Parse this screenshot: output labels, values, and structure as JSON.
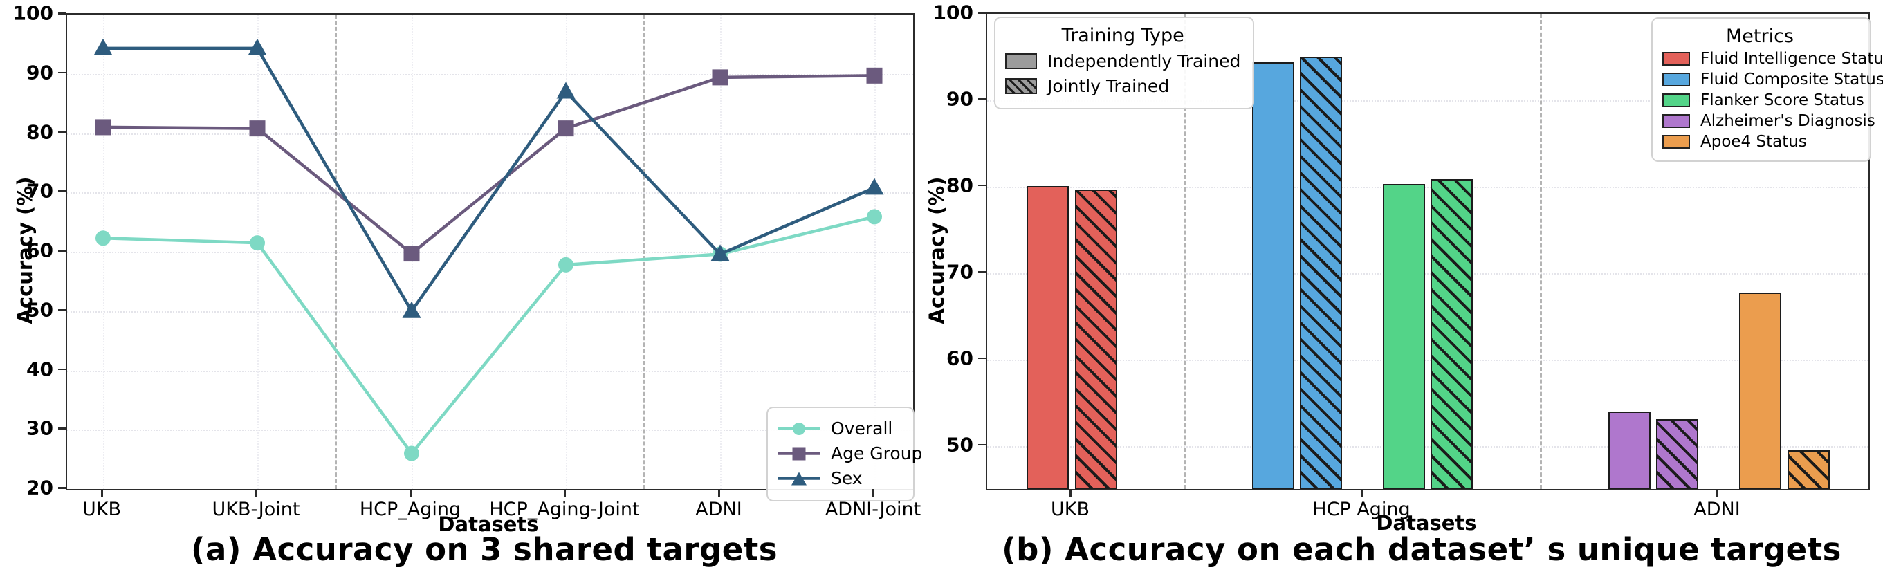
{
  "figure": {
    "background": "#ffffff"
  },
  "chart_data": [
    {
      "type": "line",
      "title": "(a) Accuracy on 3 shared targets",
      "xlabel": "Datasets",
      "ylabel": "Accuracy (%)",
      "ylim": [
        20,
        100
      ],
      "yticks": [
        20,
        30,
        40,
        50,
        60,
        70,
        80,
        90,
        100
      ],
      "categories": [
        "UKB",
        "UKB-Joint",
        "HCP_Aging",
        "HCP_Aging-Joint",
        "ADNI",
        "ADNI-Joint"
      ],
      "grid": "dotted",
      "legend_position": "lower right",
      "separators_between": [
        "UKB-Joint|HCP_Aging",
        "HCP_Aging-Joint|ADNI"
      ],
      "series": [
        {
          "name": "Overall",
          "marker": "circle",
          "color": "#7ed9c4",
          "values": [
            62.3,
            61.5,
            26.0,
            57.8,
            59.6,
            65.9
          ]
        },
        {
          "name": "Age Group",
          "marker": "square",
          "color": "#6b5a7e",
          "values": [
            81.0,
            80.8,
            59.7,
            80.8,
            89.4,
            89.7
          ]
        },
        {
          "name": "Sex",
          "marker": "triangle",
          "color": "#2e5c7e",
          "values": [
            94.3,
            94.3,
            50.0,
            87.0,
            59.6,
            70.8
          ]
        }
      ]
    },
    {
      "type": "bar",
      "title": "(b) Accuracy on each dataset’ s unique targets",
      "xlabel": "Datasets",
      "ylabel": "Accuracy (%)",
      "ylim": [
        45,
        100
      ],
      "yticks": [
        50,
        60,
        70,
        80,
        90,
        100
      ],
      "categories": [
        "UKB",
        "HCP Aging",
        "ADNI"
      ],
      "grid": "dotted",
      "legend_training": {
        "title": "Training Type",
        "swatch_color": "#9c9c9c",
        "items": [
          {
            "label": "Independently Trained",
            "style": "solid"
          },
          {
            "label": "Jointly Trained",
            "style": "hatched"
          }
        ]
      },
      "legend_metrics": {
        "title": "Metrics",
        "items": [
          {
            "label": "Fluid Intelligence Status",
            "color": "#e3615a"
          },
          {
            "label": "Fluid Composite Status",
            "color": "#57a7de"
          },
          {
            "label": "Flanker Score Status",
            "color": "#53d488"
          },
          {
            "label": "Alzheimer's Diagnosis",
            "color": "#af77cd"
          },
          {
            "label": "Apoe4 Status",
            "color": "#eb9d4e"
          }
        ]
      },
      "bars": [
        {
          "dataset": "UKB",
          "metric": "Fluid Intelligence Status",
          "training": "Independently Trained",
          "value": 80.1,
          "color": "#e3615a",
          "hatched": false
        },
        {
          "dataset": "UKB",
          "metric": "Fluid Intelligence Status",
          "training": "Jointly Trained",
          "value": 79.7,
          "color": "#e3615a",
          "hatched": true
        },
        {
          "dataset": "HCP Aging",
          "metric": "Fluid Composite Status",
          "training": "Independently Trained",
          "value": 94.4,
          "color": "#57a7de",
          "hatched": false
        },
        {
          "dataset": "HCP Aging",
          "metric": "Fluid Composite Status",
          "training": "Jointly Trained",
          "value": 95.0,
          "color": "#57a7de",
          "hatched": true
        },
        {
          "dataset": "HCP Aging",
          "metric": "Flanker Score Status",
          "training": "Independently Trained",
          "value": 80.3,
          "color": "#53d488",
          "hatched": false
        },
        {
          "dataset": "HCP Aging",
          "metric": "Flanker Score Status",
          "training": "Jointly Trained",
          "value": 80.9,
          "color": "#53d488",
          "hatched": true
        },
        {
          "dataset": "ADNI",
          "metric": "Alzheimer's Diagnosis",
          "training": "Independently Trained",
          "value": 54.0,
          "color": "#af77cd",
          "hatched": false
        },
        {
          "dataset": "ADNI",
          "metric": "Alzheimer's Diagnosis",
          "training": "Jointly Trained",
          "value": 53.1,
          "color": "#af77cd",
          "hatched": true
        },
        {
          "dataset": "ADNI",
          "metric": "Apoe4 Status",
          "training": "Independently Trained",
          "value": 67.7,
          "color": "#eb9d4e",
          "hatched": false
        },
        {
          "dataset": "ADNI",
          "metric": "Apoe4 Status",
          "training": "Jointly Trained",
          "value": 49.5,
          "color": "#eb9d4e",
          "hatched": true
        }
      ]
    }
  ]
}
